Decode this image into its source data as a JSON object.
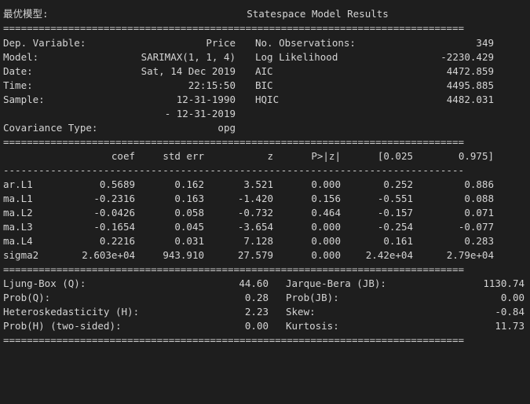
{
  "prompt_label": "最优模型:",
  "summary_title": "Statespace Model Results",
  "rules": {
    "double": "==============================================================================",
    "single": "------------------------------------------------------------------------------"
  },
  "info": {
    "left": [
      {
        "label": "Dep. Variable:",
        "value": "Price"
      },
      {
        "label": "Model:",
        "value": "SARIMAX(1, 1, 4)"
      },
      {
        "label": "Date:",
        "value": "Sat, 14 Dec 2019"
      },
      {
        "label": "Time:",
        "value": "22:15:50"
      },
      {
        "label": "Sample:",
        "value": "12-31-1990"
      },
      {
        "label": "",
        "value": "- 12-31-2019"
      },
      {
        "label": "Covariance Type:",
        "value": "opg"
      }
    ],
    "right": [
      {
        "label": "No. Observations:",
        "value": "349"
      },
      {
        "label": "Log Likelihood",
        "value": "-2230.429"
      },
      {
        "label": "AIC",
        "value": "4472.859"
      },
      {
        "label": "BIC",
        "value": "4495.885"
      },
      {
        "label": "HQIC",
        "value": "4482.031"
      }
    ]
  },
  "coef_table": {
    "headers": [
      "coef",
      "std err",
      "z",
      "P>|z|",
      "[0.025",
      "0.975]"
    ],
    "rows": [
      {
        "name": "ar.L1",
        "cells": [
          "0.5689",
          "0.162",
          "3.521",
          "0.000",
          "0.252",
          "0.886"
        ]
      },
      {
        "name": "ma.L1",
        "cells": [
          "-0.2316",
          "0.163",
          "-1.420",
          "0.156",
          "-0.551",
          "0.088"
        ]
      },
      {
        "name": "ma.L2",
        "cells": [
          "-0.0426",
          "0.058",
          "-0.732",
          "0.464",
          "-0.157",
          "0.071"
        ]
      },
      {
        "name": "ma.L3",
        "cells": [
          "-0.1654",
          "0.045",
          "-3.654",
          "0.000",
          "-0.254",
          "-0.077"
        ]
      },
      {
        "name": "ma.L4",
        "cells": [
          "0.2216",
          "0.031",
          "7.128",
          "0.000",
          "0.161",
          "0.283"
        ]
      },
      {
        "name": "sigma2",
        "cells": [
          "2.603e+04",
          "943.910",
          "27.579",
          "0.000",
          "2.42e+04",
          "2.79e+04"
        ]
      }
    ]
  },
  "diagnostics": {
    "left": [
      {
        "label": "Ljung-Box (Q):",
        "value": "44.60"
      },
      {
        "label": "Prob(Q):",
        "value": "0.28"
      },
      {
        "label": "Heteroskedasticity (H):",
        "value": "2.23"
      },
      {
        "label": "Prob(H) (two-sided):",
        "value": "0.00"
      }
    ],
    "right": [
      {
        "label": "Jarque-Bera (JB):",
        "value": "1130.74"
      },
      {
        "label": "Prob(JB):",
        "value": "0.00"
      },
      {
        "label": "Skew:",
        "value": "-0.84"
      },
      {
        "label": "Kurtosis:",
        "value": "11.73"
      }
    ]
  }
}
